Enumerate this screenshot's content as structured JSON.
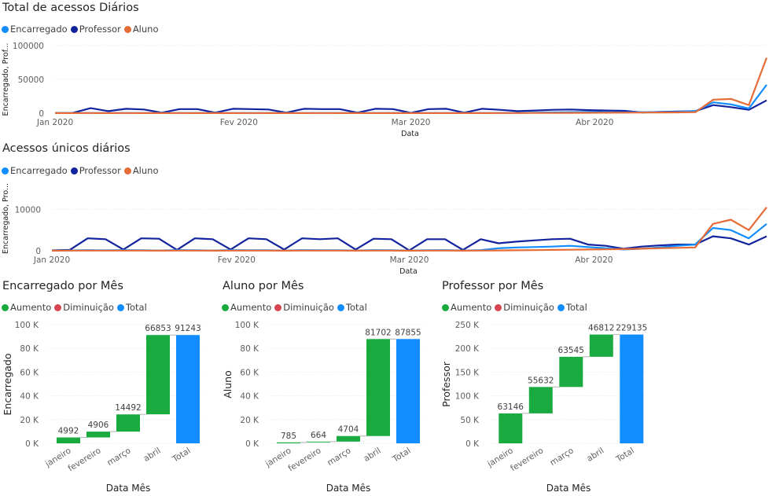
{
  "colors": {
    "encarregado": "#118DFF",
    "professor": "#12239E",
    "aluno": "#E66C37",
    "aumento": "#1AAB40",
    "diminuicao": "#D64550",
    "total": "#118DFF",
    "grid": "#E6E6E6",
    "connector": "#B3B3B3"
  },
  "chart_data": [
    {
      "type": "line",
      "title": "Total de acessos Diários",
      "xlabel": "Data",
      "ylabel": "Encarregado, Prof...",
      "ylim": [
        0,
        100000
      ],
      "yticks": [
        "0",
        "50000",
        "100000"
      ],
      "xticks": [
        "Jan 2020",
        "Fev 2020",
        "Mar 2020",
        "Abr 2020"
      ],
      "x": [
        "2020-01-01",
        "2020-01-04",
        "2020-01-07",
        "2020-01-10",
        "2020-01-13",
        "2020-01-16",
        "2020-01-19",
        "2020-01-22",
        "2020-01-25",
        "2020-01-28",
        "2020-01-31",
        "2020-02-03",
        "2020-02-06",
        "2020-02-09",
        "2020-02-12",
        "2020-02-15",
        "2020-02-18",
        "2020-02-21",
        "2020-02-24",
        "2020-02-27",
        "2020-03-01",
        "2020-03-04",
        "2020-03-07",
        "2020-03-10",
        "2020-03-13",
        "2020-03-16",
        "2020-03-19",
        "2020-03-22",
        "2020-03-25",
        "2020-03-28",
        "2020-03-31",
        "2020-04-03",
        "2020-04-06",
        "2020-04-09",
        "2020-04-12",
        "2020-04-15",
        "2020-04-18",
        "2020-04-21",
        "2020-04-24",
        "2020-04-27",
        "2020-04-30"
      ],
      "legend": [
        "Encarregado",
        "Professor",
        "Aluno"
      ],
      "legend_position": "top-left",
      "series": [
        {
          "name": "Encarregado",
          "values": [
            200,
            300,
            400,
            300,
            400,
            300,
            300,
            400,
            300,
            300,
            300,
            400,
            300,
            300,
            300,
            400,
            300,
            300,
            300,
            300,
            200,
            300,
            300,
            300,
            300,
            300,
            500,
            800,
            1200,
            1500,
            1800,
            1500,
            1200,
            1500,
            1500,
            2000,
            3000,
            16000,
            13000,
            7000,
            42000
          ]
        },
        {
          "name": "Professor",
          "values": [
            300,
            500,
            7500,
            3000,
            6500,
            5500,
            800,
            6000,
            6000,
            800,
            6500,
            6000,
            5500,
            800,
            6500,
            6000,
            6000,
            800,
            6500,
            6000,
            500,
            6000,
            6500,
            800,
            6500,
            5000,
            3000,
            4000,
            5000,
            5500,
            4500,
            4000,
            3500,
            1000,
            2000,
            2500,
            3000,
            12000,
            9000,
            5000,
            19000
          ]
        },
        {
          "name": "Aluno",
          "values": [
            100,
            150,
            200,
            150,
            200,
            150,
            150,
            200,
            150,
            150,
            150,
            200,
            150,
            150,
            150,
            200,
            150,
            150,
            150,
            150,
            100,
            150,
            150,
            150,
            150,
            200,
            250,
            300,
            400,
            500,
            600,
            700,
            800,
            900,
            1000,
            1200,
            1500,
            20000,
            21000,
            12000,
            82000
          ]
        }
      ]
    },
    {
      "type": "line",
      "title": "Acessos únicos diários",
      "xlabel": "Data",
      "ylabel": "Encarregado, Pro...",
      "ylim": [
        0,
        15000
      ],
      "yticks": [
        "0",
        "10000"
      ],
      "xticks": [
        "Jan 2020",
        "Fev 2020",
        "Mar 2020",
        "Abr 2020"
      ],
      "x": [
        "2020-01-01",
        "2020-01-04",
        "2020-01-07",
        "2020-01-10",
        "2020-01-13",
        "2020-01-16",
        "2020-01-19",
        "2020-01-22",
        "2020-01-25",
        "2020-01-28",
        "2020-01-31",
        "2020-02-03",
        "2020-02-06",
        "2020-02-09",
        "2020-02-12",
        "2020-02-15",
        "2020-02-18",
        "2020-02-21",
        "2020-02-24",
        "2020-02-27",
        "2020-03-01",
        "2020-03-04",
        "2020-03-07",
        "2020-03-10",
        "2020-03-13",
        "2020-03-16",
        "2020-03-19",
        "2020-03-22",
        "2020-03-25",
        "2020-03-28",
        "2020-03-31",
        "2020-04-03",
        "2020-04-06",
        "2020-04-09",
        "2020-04-12",
        "2020-04-15",
        "2020-04-18",
        "2020-04-21",
        "2020-04-24",
        "2020-04-27",
        "2020-04-30"
      ],
      "legend": [
        "Encarregado",
        "Professor",
        "Aluno"
      ],
      "legend_position": "top-left",
      "series": [
        {
          "name": "Encarregado",
          "values": [
            50,
            80,
            150,
            100,
            150,
            120,
            60,
            150,
            120,
            60,
            150,
            120,
            120,
            60,
            150,
            120,
            120,
            60,
            150,
            120,
            50,
            120,
            150,
            60,
            150,
            600,
            800,
            900,
            1000,
            1200,
            900,
            600,
            300,
            500,
            800,
            1200,
            1500,
            5500,
            5000,
            3000,
            6500
          ]
        },
        {
          "name": "Professor",
          "values": [
            100,
            200,
            3000,
            2800,
            300,
            3000,
            2900,
            200,
            3000,
            2800,
            300,
            3000,
            2800,
            300,
            3000,
            2800,
            3000,
            300,
            2900,
            2800,
            100,
            2800,
            2800,
            200,
            2800,
            1800,
            2200,
            2500,
            2800,
            2900,
            1500,
            1200,
            500,
            1000,
            1300,
            1500,
            1500,
            3500,
            3000,
            1500,
            3500
          ]
        },
        {
          "name": "Aluno",
          "values": [
            20,
            30,
            40,
            30,
            40,
            30,
            20,
            40,
            30,
            20,
            40,
            30,
            30,
            20,
            40,
            30,
            30,
            20,
            40,
            30,
            20,
            30,
            40,
            20,
            40,
            80,
            120,
            150,
            200,
            250,
            300,
            350,
            400,
            500,
            600,
            700,
            800,
            6500,
            7500,
            5000,
            10500
          ]
        }
      ]
    },
    {
      "type": "waterfall",
      "title": "Encarregado por Mês",
      "xlabel": "Data Mês",
      "ylabel": "Encarregado",
      "ylim": [
        0,
        100000
      ],
      "yticks": [
        "0 K",
        "20 K",
        "40 K",
        "60 K",
        "80 K",
        "100 K"
      ],
      "legend": [
        "Aumento",
        "Diminuição",
        "Total"
      ],
      "categories": [
        "janeiro",
        "fevereiro",
        "março",
        "abril",
        "Total"
      ],
      "values": [
        4992,
        4906,
        14492,
        66853,
        91243
      ],
      "labels": [
        "4992",
        "4906",
        "14492",
        "66853",
        "91243"
      ]
    },
    {
      "type": "waterfall",
      "title": "Aluno por Mês",
      "xlabel": "Data Mês",
      "ylabel": "Aluno",
      "ylim": [
        0,
        100000
      ],
      "yticks": [
        "0 K",
        "20 K",
        "40 K",
        "60 K",
        "80 K",
        "100 K"
      ],
      "legend": [
        "Aumento",
        "Diminuição",
        "Total"
      ],
      "categories": [
        "janeiro",
        "fevereiro",
        "março",
        "abril",
        "Total"
      ],
      "values": [
        785,
        664,
        4704,
        81702,
        87855
      ],
      "labels": [
        "785",
        "664",
        "4704",
        "81702",
        "87855"
      ]
    },
    {
      "type": "waterfall",
      "title": "Professor por Mês",
      "xlabel": "Data Mês",
      "ylabel": "Professor",
      "ylim": [
        0,
        250000
      ],
      "yticks": [
        "0 K",
        "50 K",
        "100 K",
        "150 K",
        "200 K",
        "250 K"
      ],
      "legend": [
        "Aumento",
        "Diminuição",
        "Total"
      ],
      "categories": [
        "janeiro",
        "fevereiro",
        "março",
        "abril",
        "Total"
      ],
      "values": [
        63146,
        55632,
        63545,
        46812,
        229135
      ],
      "labels": [
        "63146",
        "55632",
        "63545",
        "46812",
        "229135"
      ]
    }
  ]
}
